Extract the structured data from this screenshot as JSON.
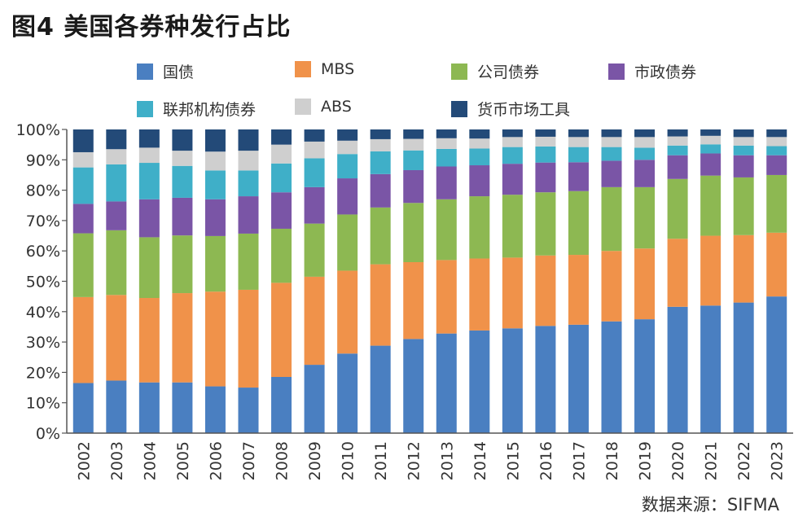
{
  "title": "图4  美国各券种发行占比",
  "source": "数据来源：SIFMA",
  "chart_data": {
    "type": "bar",
    "stacked": true,
    "ylim": [
      0,
      100
    ],
    "yticks": [
      "0%",
      "10%",
      "20%",
      "30%",
      "40%",
      "50%",
      "60%",
      "70%",
      "80%",
      "90%",
      "100%"
    ],
    "categories": [
      "2002",
      "2003",
      "2004",
      "2005",
      "2006",
      "2007",
      "2008",
      "2009",
      "2010",
      "2011",
      "2012",
      "2013",
      "2014",
      "2015",
      "2016",
      "2017",
      "2018",
      "2019",
      "2020",
      "2021",
      "2022",
      "2023"
    ],
    "series": [
      {
        "name": "国债",
        "color": "#4a7fc1",
        "values": [
          16.5,
          17.3,
          16.7,
          16.7,
          15.4,
          15,
          18.5,
          22.5,
          26.2,
          28.8,
          31,
          32.8,
          33.8,
          34.5,
          35.3,
          35.7,
          36.8,
          37.5,
          41.6,
          42,
          43,
          45
        ]
      },
      {
        "name": "MBS",
        "color": "#f0924a",
        "values": [
          28.3,
          28.2,
          27.8,
          29.4,
          31.2,
          32.2,
          31,
          29,
          27.3,
          26.8,
          25.3,
          24.2,
          23.7,
          23.3,
          23.2,
          23,
          23.2,
          23.3,
          22.4,
          23,
          22.2,
          21
        ]
      },
      {
        "name": "公司债券",
        "color": "#8db852",
        "values": [
          21,
          21.3,
          20,
          19,
          18.3,
          18.5,
          17.8,
          17.5,
          18.5,
          18.7,
          19.5,
          20,
          20.5,
          20.7,
          20.8,
          21,
          21,
          20.2,
          19.7,
          19.8,
          19,
          19
        ]
      },
      {
        "name": "市政债券",
        "color": "#7a55a6",
        "values": [
          9.7,
          9.5,
          12.5,
          12.4,
          12.1,
          12.3,
          12,
          12,
          11.9,
          11,
          10.8,
          10.8,
          10.2,
          10.2,
          9.8,
          9.5,
          8.7,
          9,
          7.8,
          7.3,
          7.3,
          6.5
        ]
      },
      {
        "name": "联邦机构债券",
        "color": "#3fafc8",
        "values": [
          12,
          12.2,
          12,
          10.5,
          9.5,
          8.5,
          9.5,
          9.5,
          8,
          7.5,
          6.5,
          5.8,
          5.5,
          5.5,
          5.3,
          5,
          4.5,
          4,
          3.2,
          3,
          3.2,
          3
        ]
      },
      {
        "name": "ABS",
        "color": "#cfcfcf",
        "values": [
          5,
          5,
          5,
          5,
          6.2,
          6.5,
          6.2,
          5.5,
          4.4,
          4,
          3.8,
          3.5,
          3.3,
          3.3,
          3.2,
          3.3,
          3.3,
          3.5,
          3,
          2.8,
          2.8,
          3
        ]
      },
      {
        "name": "货币市场工具",
        "color": "#234a78",
        "values": [
          7.5,
          6.5,
          6,
          7,
          7.3,
          7,
          5,
          4,
          3.7,
          3.2,
          3.1,
          2.9,
          3,
          2.5,
          2.4,
          2.5,
          2.5,
          2.5,
          2.3,
          2.1,
          2.5,
          2.5
        ]
      }
    ]
  }
}
